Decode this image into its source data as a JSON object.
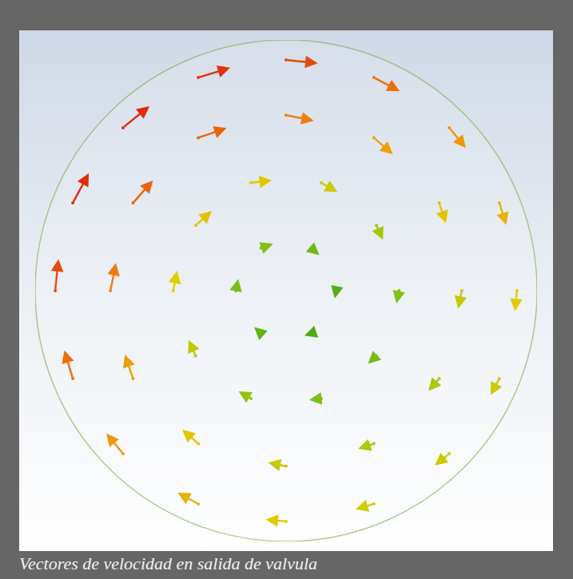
{
  "chart_data": {
    "type": "vector_field",
    "caption": "Vectores de velocidad en salida de valvula",
    "xlim": [
      -1,
      1
    ],
    "ylim": [
      -1,
      1
    ],
    "tick_labels": false,
    "grid": false,
    "vectors": {
      "x": [
        0.2,
        0.1,
        -0.1,
        -0.2,
        -0.1,
        0.1,
        0.45,
        0.36,
        0.14,
        -0.14,
        -0.36,
        -0.45,
        -0.36,
        -0.14,
        0.14,
        0.36,
        0.7,
        0.61,
        0.35,
        0,
        -0.35,
        -0.61,
        -0.7,
        -0.61,
        -0.35,
        0,
        0.35,
        0.61,
        0.92,
        0.85,
        0.65,
        0.35,
        0,
        -0.35,
        -0.65,
        -0.85,
        -0.92,
        -0.85,
        -0.65,
        -0.35,
        0,
        0.35,
        0.65,
        0.85
      ],
      "y": [
        0,
        0.17,
        0.17,
        0,
        -0.17,
        -0.17,
        0,
        0.26,
        0.43,
        0.43,
        0.26,
        0,
        -0.26,
        -0.43,
        -0.43,
        -0.26,
        0,
        0.35,
        0.61,
        0.7,
        0.61,
        0.35,
        0,
        -0.35,
        -0.61,
        -0.7,
        -0.61,
        -0.35,
        0,
        0.35,
        0.65,
        0.85,
        0.92,
        0.85,
        0.65,
        0.35,
        0,
        -0.35,
        -0.65,
        -0.85,
        -0.92,
        -0.85,
        -0.65,
        -0.35
      ],
      "u": [
        -0.05,
        0.25,
        0.37,
        0.07,
        -0.21,
        -0.21,
        -0.08,
        0.2,
        0.5,
        0.64,
        0.49,
        0.12,
        -0.22,
        -0.38,
        -0.37,
        -0.26,
        -0.11,
        0.21,
        0.58,
        0.85,
        0.87,
        0.61,
        0.17,
        -0.25,
        -0.49,
        -0.55,
        -0.48,
        -0.33,
        -0.06,
        0.21,
        0.51,
        0.79,
        0.97,
        0.98,
        0.81,
        0.49,
        0.1,
        -0.26,
        -0.51,
        -0.63,
        -0.63,
        -0.56,
        -0.44,
        -0.27
      ],
      "v": [
        -0.24,
        -0.22,
        0.13,
        0.36,
        0.19,
        -0.07,
        -0.39,
        -0.44,
        -0.28,
        0.08,
        0.45,
        0.61,
        0.49,
        0.22,
        -0.04,
        -0.24,
        -0.55,
        -0.62,
        -0.51,
        -0.17,
        0.3,
        0.69,
        0.85,
        0.73,
        0.43,
        0.11,
        -0.16,
        -0.38,
        -0.63,
        -0.68,
        -0.62,
        -0.42,
        -0.1,
        0.3,
        0.66,
        0.91,
        0.97,
        0.86,
        0.62,
        0.34,
        0.06,
        -0.17,
        -0.36,
        -0.51
      ]
    }
  }
}
